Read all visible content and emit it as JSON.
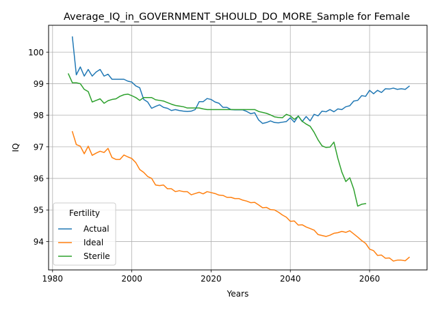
{
  "chart_data": {
    "type": "line",
    "title": "Average_IQ_in_GOVERNMENT_SHOULD_DO_MORE_Sample for Female",
    "xlabel": "Years",
    "ylabel": "IQ",
    "xlim": [
      1979,
      2074.5
    ],
    "ylim": [
      93.1,
      100.85
    ],
    "xticks": [
      1980,
      2000,
      2020,
      2040,
      2060
    ],
    "yticks": [
      94,
      95,
      96,
      97,
      98,
      99,
      100
    ],
    "grid": true,
    "legend": {
      "title": "Fertility",
      "placement": "lower-left",
      "entries": [
        "Actual",
        "Ideal",
        "Sterile"
      ]
    },
    "series": [
      {
        "name": "Actual",
        "color": "#1f77b4",
        "x": [
          1985,
          1986,
          1987,
          1988,
          1989,
          1990,
          1991,
          1992,
          1993,
          1994,
          1995,
          1996,
          1997,
          1998,
          1999,
          2000,
          2001,
          2002,
          2003,
          2004,
          2005,
          2006,
          2007,
          2008,
          2009,
          2010,
          2011,
          2012,
          2013,
          2014,
          2015,
          2016,
          2017,
          2018,
          2019,
          2020,
          2021,
          2022,
          2023,
          2024,
          2025,
          2026,
          2027,
          2028,
          2029,
          2030,
          2031,
          2032,
          2033,
          2034,
          2035,
          2036,
          2037,
          2038,
          2039,
          2040,
          2041,
          2042,
          2043,
          2044,
          2045,
          2046,
          2047,
          2048,
          2049,
          2050,
          2051,
          2052,
          2053,
          2054,
          2055,
          2056,
          2057,
          2058,
          2059,
          2060,
          2061,
          2062,
          2063,
          2064,
          2065,
          2066,
          2067,
          2068,
          2069,
          2070
        ],
        "y": [
          100.48,
          99.28,
          99.53,
          99.24,
          99.45,
          99.24,
          99.37,
          99.45,
          99.24,
          99.3,
          99.14,
          99.14,
          99.14,
          99.14,
          99.08,
          99.05,
          98.93,
          98.87,
          98.5,
          98.42,
          98.22,
          98.28,
          98.33,
          98.25,
          98.22,
          98.15,
          98.18,
          98.15,
          98.13,
          98.12,
          98.13,
          98.18,
          98.43,
          98.43,
          98.53,
          98.5,
          98.42,
          98.38,
          98.25,
          98.25,
          98.18,
          98.17,
          98.17,
          98.17,
          98.12,
          98.05,
          98.08,
          97.85,
          97.74,
          97.77,
          97.82,
          97.77,
          97.76,
          97.78,
          97.8,
          97.92,
          97.78,
          97.98,
          97.8,
          97.96,
          97.82,
          98.03,
          97.98,
          98.13,
          98.11,
          98.18,
          98.11,
          98.2,
          98.18,
          98.27,
          98.3,
          98.45,
          98.47,
          98.62,
          98.6,
          98.79,
          98.68,
          98.79,
          98.72,
          98.84,
          98.83,
          98.86,
          98.82,
          98.84,
          98.82,
          98.92
        ]
      },
      {
        "name": "Ideal",
        "color": "#ff7f0e",
        "x": [
          1985,
          1986,
          1987,
          1988,
          1989,
          1990,
          1991,
          1992,
          1993,
          1994,
          1995,
          1996,
          1997,
          1998,
          1999,
          2000,
          2001,
          2002,
          2003,
          2004,
          2005,
          2006,
          2007,
          2008,
          2009,
          2010,
          2011,
          2012,
          2013,
          2014,
          2015,
          2016,
          2017,
          2018,
          2019,
          2020,
          2021,
          2022,
          2023,
          2024,
          2025,
          2026,
          2027,
          2028,
          2029,
          2030,
          2031,
          2032,
          2033,
          2034,
          2035,
          2036,
          2037,
          2038,
          2039,
          2040,
          2041,
          2042,
          2043,
          2044,
          2045,
          2046,
          2047,
          2048,
          2049,
          2050,
          2051,
          2052,
          2053,
          2054,
          2055,
          2056,
          2057,
          2058,
          2059,
          2060,
          2061,
          2062,
          2063,
          2064,
          2065,
          2066,
          2067,
          2068,
          2069,
          2070
        ],
        "y": [
          97.48,
          97.07,
          97.02,
          96.78,
          97.02,
          96.73,
          96.8,
          96.86,
          96.82,
          96.95,
          96.66,
          96.6,
          96.6,
          96.74,
          96.68,
          96.63,
          96.5,
          96.28,
          96.19,
          96.06,
          96.0,
          95.79,
          95.77,
          95.79,
          95.67,
          95.67,
          95.58,
          95.61,
          95.58,
          95.58,
          95.48,
          95.52,
          95.56,
          95.51,
          95.58,
          95.55,
          95.52,
          95.47,
          95.46,
          95.4,
          95.4,
          95.36,
          95.36,
          95.31,
          95.28,
          95.23,
          95.24,
          95.16,
          95.07,
          95.08,
          95.01,
          95.0,
          94.93,
          94.84,
          94.77,
          94.64,
          94.65,
          94.52,
          94.53,
          94.46,
          94.41,
          94.36,
          94.22,
          94.19,
          94.16,
          94.2,
          94.26,
          94.28,
          94.32,
          94.29,
          94.34,
          94.24,
          94.14,
          94.03,
          93.94,
          93.76,
          93.71,
          93.56,
          93.57,
          93.47,
          93.48,
          93.38,
          93.41,
          93.41,
          93.39,
          93.5
        ]
      },
      {
        "name": "Sterile",
        "color": "#2ca02c",
        "x": [
          1984,
          1985,
          1986,
          1987,
          1988,
          1989,
          1990,
          1991,
          1992,
          1993,
          1994,
          1995,
          1996,
          1997,
          1998,
          1999,
          2000,
          2001,
          2002,
          2003,
          2004,
          2005,
          2006,
          2007,
          2008,
          2009,
          2010,
          2011,
          2012,
          2013,
          2014,
          2015,
          2016,
          2017,
          2018,
          2019,
          2020,
          2021,
          2022,
          2023,
          2024,
          2025,
          2026,
          2027,
          2028,
          2029,
          2030,
          2031,
          2032,
          2033,
          2034,
          2035,
          2036,
          2037,
          2038,
          2039,
          2040,
          2041,
          2042,
          2043,
          2044,
          2045,
          2046,
          2047,
          2048,
          2049,
          2050,
          2051,
          2052,
          2053,
          2054,
          2055,
          2056,
          2057,
          2058,
          2059
        ],
        "y": [
          99.31,
          99.03,
          99.03,
          99.0,
          98.82,
          98.75,
          98.42,
          98.47,
          98.52,
          98.38,
          98.46,
          98.5,
          98.52,
          98.6,
          98.65,
          98.67,
          98.62,
          98.56,
          98.47,
          98.56,
          98.56,
          98.56,
          98.49,
          98.47,
          98.45,
          98.4,
          98.35,
          98.31,
          98.29,
          98.27,
          98.23,
          98.23,
          98.23,
          98.23,
          98.2,
          98.18,
          98.18,
          98.18,
          98.18,
          98.18,
          98.18,
          98.18,
          98.18,
          98.18,
          98.18,
          98.18,
          98.18,
          98.18,
          98.12,
          98.09,
          98.06,
          98.01,
          97.95,
          97.93,
          97.92,
          98.03,
          97.98,
          97.87,
          97.97,
          97.81,
          97.72,
          97.65,
          97.46,
          97.22,
          97.03,
          96.98,
          96.99,
          97.15,
          96.63,
          96.2,
          95.9,
          96.02,
          95.66,
          95.12,
          95.18,
          95.2
        ]
      }
    ]
  }
}
